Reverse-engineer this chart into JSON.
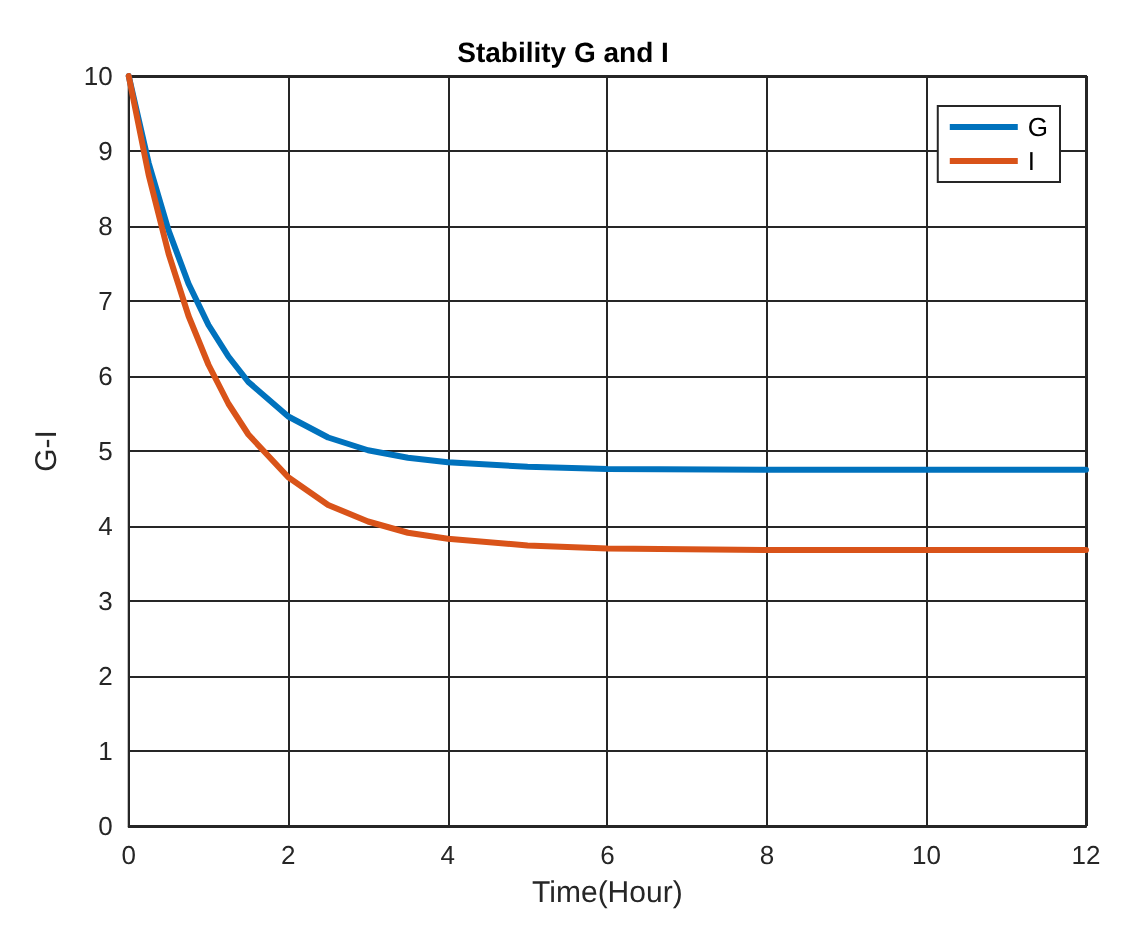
{
  "chart_data": {
    "type": "line",
    "title": "Stability G and I",
    "xlabel": "Time(Hour)",
    "ylabel": "G-I",
    "x": [
      0,
      0.25,
      0.5,
      0.75,
      1,
      1.25,
      1.5,
      2,
      2.5,
      3,
      3.5,
      4,
      5,
      6,
      8,
      10,
      12
    ],
    "series": [
      {
        "name": "G",
        "color": "#0072bd",
        "values": [
          10,
          8.84,
          7.94,
          7.23,
          6.68,
          6.26,
          5.92,
          5.46,
          5.18,
          5.01,
          4.91,
          4.85,
          4.79,
          4.76,
          4.75,
          4.75,
          4.75
        ]
      },
      {
        "name": "I",
        "color": "#d95319",
        "values": [
          10,
          8.68,
          7.63,
          6.8,
          6.15,
          5.63,
          5.22,
          4.65,
          4.28,
          4.06,
          3.91,
          3.83,
          3.74,
          3.7,
          3.68,
          3.68,
          3.68
        ]
      }
    ],
    "xlim": [
      0,
      12
    ],
    "xticks": [
      0,
      2,
      4,
      6,
      8,
      10,
      12
    ],
    "ylim": [
      0,
      10
    ],
    "yticks": [
      0,
      1,
      2,
      3,
      4,
      5,
      6,
      7,
      8,
      9,
      10
    ],
    "grid": true,
    "legend": "top right",
    "marker": "none",
    "line_style": "solid"
  }
}
